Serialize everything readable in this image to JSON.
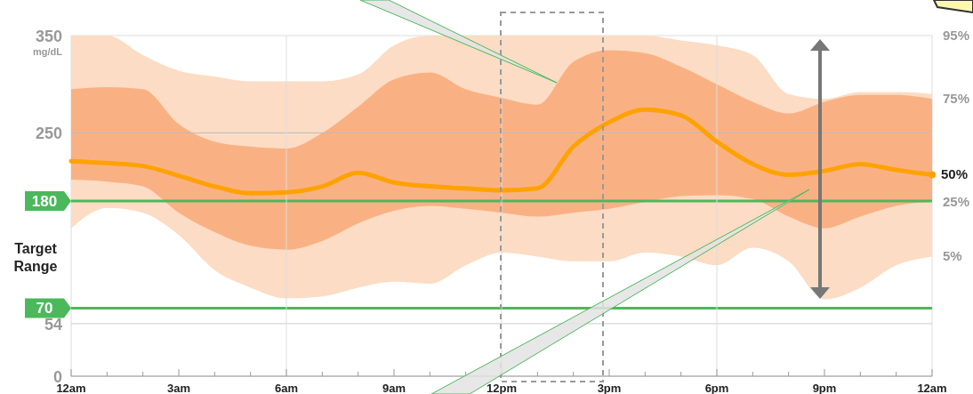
{
  "chart_data": {
    "type": "line",
    "ylabel": "mg/dL",
    "categories": [
      "12am",
      null,
      null,
      "3am",
      null,
      null,
      "6am",
      null,
      null,
      "9am",
      null,
      null,
      "12pm",
      null,
      null,
      "3pm",
      null,
      null,
      "6pm",
      null,
      null,
      "9pm",
      null,
      null,
      "12am"
    ],
    "series": [
      {
        "color": "#fcdcc4",
        "values": [
          null,
          null,
          null,
          null,
          null,
          null,
          null,
          null,
          null,
          null,
          null,
          null,
          null,
          null,
          null,
          null,
          null,
          null,
          null,
          null,
          null,
          null,
          null,
          null,
          null
        ],
        "lower": [
          152,
          173,
          168,
          145,
          109,
          91,
          80,
          82,
          91,
          97,
          95,
          114,
          127,
          123,
          118,
          118,
          127,
          123,
          114,
          132,
          118,
          79,
          91,
          114,
          123
        ],
        "upper": [
          350,
          350,
          330,
          314,
          308,
          303,
          303,
          303,
          310,
          340,
          350,
          350,
          350,
          350,
          350,
          350,
          350,
          345,
          340,
          330,
          290,
          285,
          292,
          292,
          290
        ]
      },
      {
        "color": "#f9b184",
        "values": [
          null,
          null,
          null,
          null,
          null,
          null,
          null,
          null,
          null,
          null,
          null,
          null,
          null,
          null,
          null,
          null,
          null,
          null,
          null,
          null,
          null,
          null,
          null,
          null,
          null
        ],
        "lower": [
          202,
          200,
          195,
          168,
          148,
          134,
          130,
          139,
          157,
          170,
          175,
          172,
          168,
          164,
          168,
          172,
          179,
          185,
          186,
          182,
          164,
          152,
          164,
          175,
          179
        ],
        "upper": [
          295,
          297,
          295,
          259,
          241,
          236,
          234,
          250,
          277,
          305,
          312,
          295,
          286,
          279,
          323,
          335,
          332,
          318,
          300,
          282,
          270,
          282,
          289,
          289,
          285
        ]
      },
      {
        "name": "50%",
        "color": "#ffa200",
        "values": [
          221,
          219,
          216,
          206,
          195,
          188,
          189,
          195,
          209,
          199,
          195,
          193,
          191,
          193,
          236,
          261,
          274,
          268,
          241,
          218,
          207,
          211,
          218,
          212,
          207
        ]
      }
    ],
    "ylim": [
      0,
      350
    ],
    "yticks": [
      0,
      54,
      250,
      350
    ],
    "ref_lines": [
      {
        "axis": "y",
        "value": 250,
        "color": "#bbbbbb"
      },
      {
        "axis": "y",
        "value": 180,
        "label": "180",
        "color": "#4cb85c"
      },
      {
        "axis": "y",
        "value": 70,
        "label": "70",
        "color": "#4cb85c"
      },
      {
        "axis": "y",
        "value": 54,
        "color": "#cccccc"
      },
      {
        "axis": "x",
        "value": "6am",
        "color": "#dddddd"
      },
      {
        "axis": "x",
        "value": "12pm",
        "color": "#dddddd"
      },
      {
        "axis": "x",
        "value": "6pm",
        "color": "#dddddd"
      }
    ],
    "annotations": [
      "Target Range",
      "95%",
      "75%",
      "25%",
      "5%"
    ]
  }
}
